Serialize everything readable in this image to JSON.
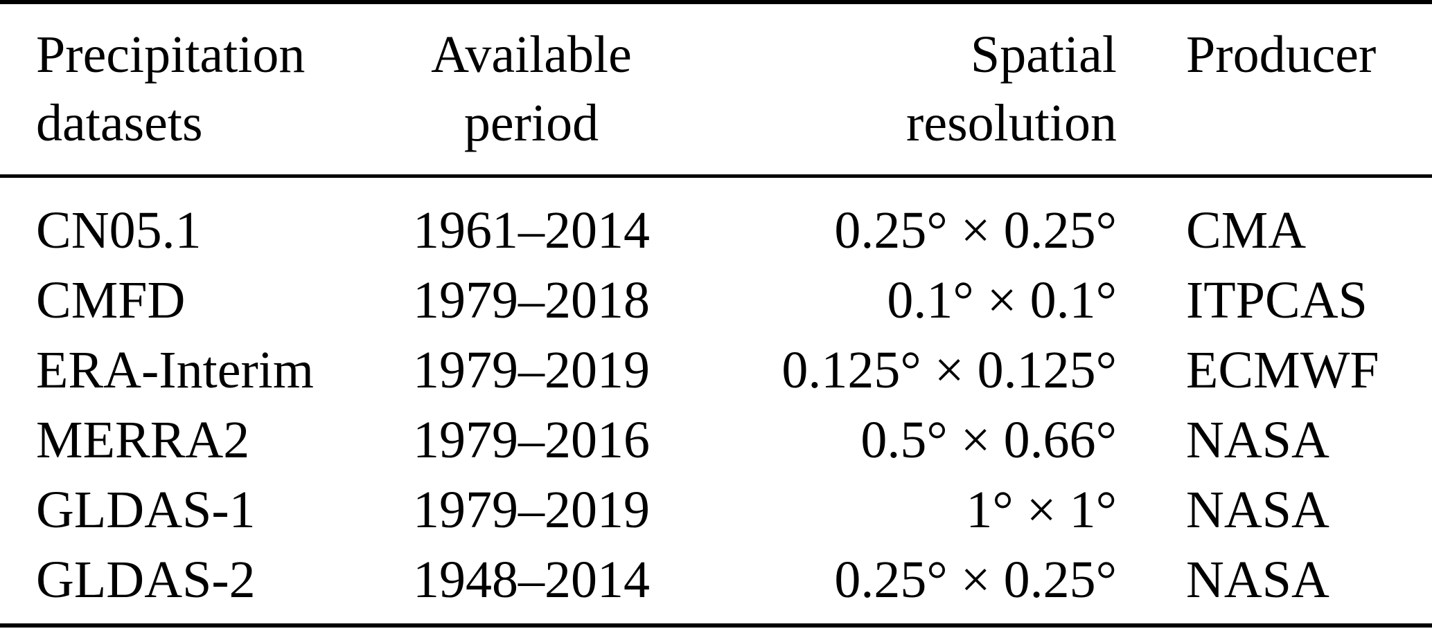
{
  "table": {
    "headers": {
      "col1": {
        "line1": "Precipitation",
        "line2": "datasets"
      },
      "col2": {
        "line1": "Available",
        "line2": "period"
      },
      "col3": {
        "line1": "Spatial",
        "line2": "resolution"
      },
      "col4": {
        "line1": "Producer",
        "line2": ""
      }
    },
    "rows": [
      {
        "dataset": "CN05.1",
        "period": "1961–2014",
        "resolution": "0.25° × 0.25°",
        "producer": "CMA"
      },
      {
        "dataset": "CMFD",
        "period": "1979–2018",
        "resolution": "0.1° × 0.1°",
        "producer": "ITPCAS"
      },
      {
        "dataset": "ERA-Interim",
        "period": "1979–2019",
        "resolution": "0.125° × 0.125°",
        "producer": "ECMWF"
      },
      {
        "dataset": "MERRA2",
        "period": "1979–2016",
        "resolution": "0.5° × 0.66°",
        "producer": "NASA"
      },
      {
        "dataset": "GLDAS-1",
        "period": "1979–2019",
        "resolution": "1° × 1°",
        "producer": "NASA"
      },
      {
        "dataset": "GLDAS-2",
        "period": "1948–2014",
        "resolution": "0.25° × 0.25°",
        "producer": "NASA"
      }
    ]
  },
  "colors": {
    "text": "#000000",
    "background": "#ffffff",
    "rule": "#000000"
  }
}
